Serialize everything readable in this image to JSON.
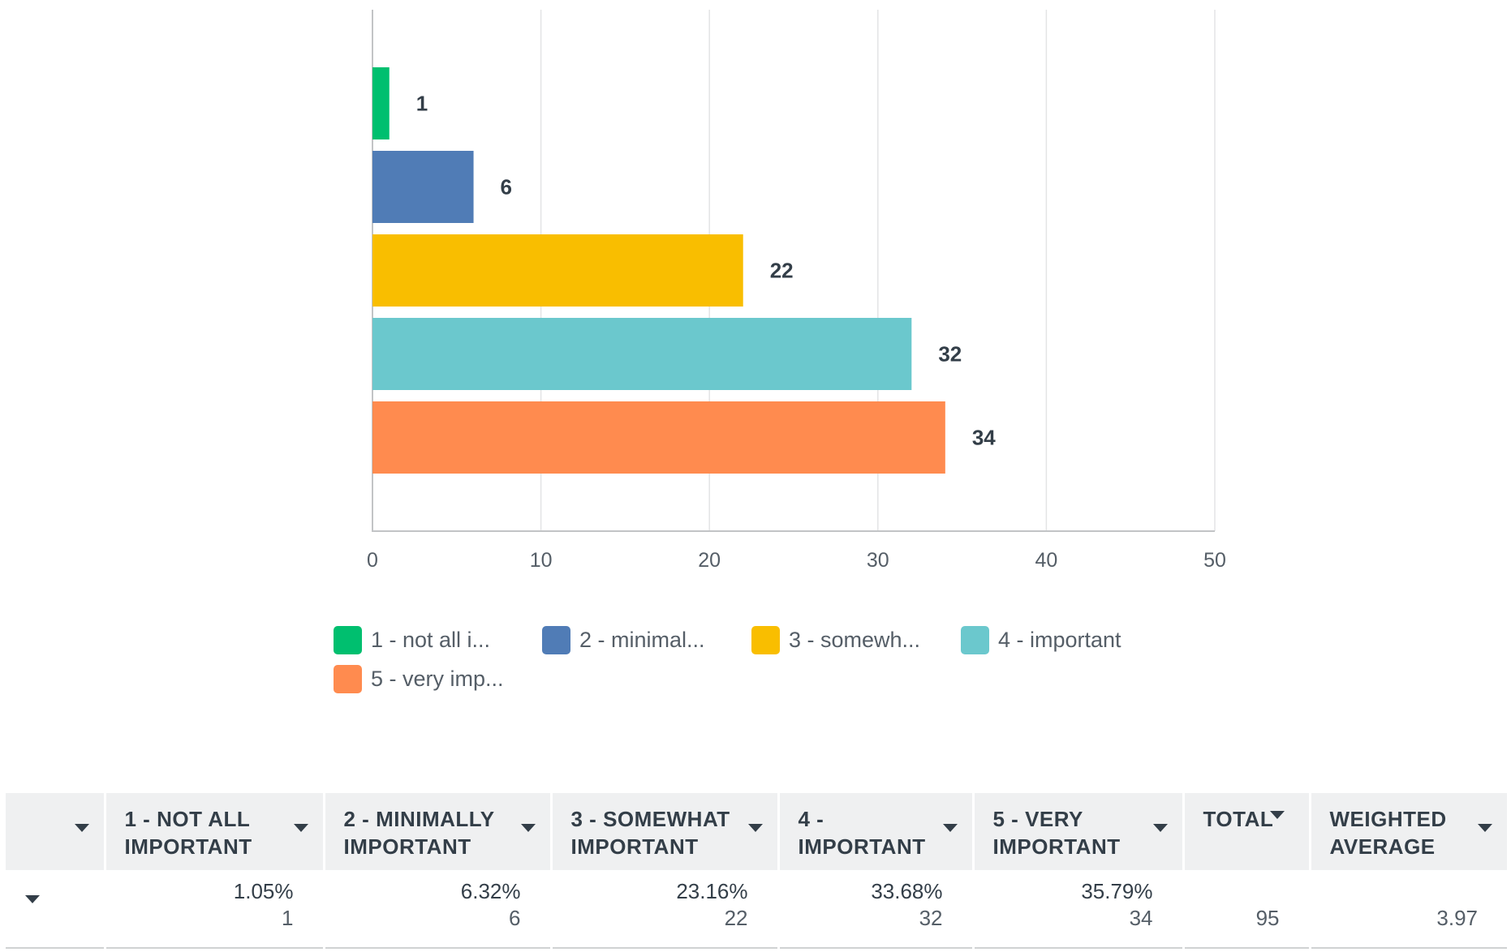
{
  "chart_data": {
    "type": "bar",
    "orientation": "horizontal",
    "title": "",
    "xlabel": "",
    "ylabel": "",
    "xlim": [
      0,
      50
    ],
    "xticks": [
      0,
      10,
      20,
      30,
      40,
      50
    ],
    "grid": true,
    "legend_position": "bottom",
    "series": [
      {
        "name": "1 - not all important",
        "legend_label": "1 - not all i...",
        "value": 1,
        "color": "#00bf6f"
      },
      {
        "name": "2 - minimally important",
        "legend_label": "2 - minimal...",
        "value": 6,
        "color": "#507cb6"
      },
      {
        "name": "3 - somewhat important",
        "legend_label": "3 - somewh...",
        "value": 22,
        "color": "#f9be00"
      },
      {
        "name": "4 - important",
        "legend_label": "4 - important",
        "value": 32,
        "color": "#6bc8cd"
      },
      {
        "name": "5 - very important",
        "legend_label": "5 - very imp...",
        "value": 34,
        "color": "#ff8b4f"
      }
    ]
  },
  "table": {
    "headers": [
      {
        "label": ""
      },
      {
        "label": "1 - NOT ALL IMPORTANT"
      },
      {
        "label": "2 - MINIMALLY IMPORTANT"
      },
      {
        "label": "3 - SOMEWHAT IMPORTANT"
      },
      {
        "label": "4 - IMPORTANT"
      },
      {
        "label": "5 - VERY IMPORTANT"
      },
      {
        "label": "TOTAL"
      },
      {
        "label": "WEIGHTED AVERAGE"
      }
    ],
    "row": {
      "label": "",
      "cells": [
        {
          "pct": "1.05%",
          "count": "1"
        },
        {
          "pct": "6.32%",
          "count": "6"
        },
        {
          "pct": "23.16%",
          "count": "22"
        },
        {
          "pct": "33.68%",
          "count": "32"
        },
        {
          "pct": "35.79%",
          "count": "34"
        }
      ],
      "total": "95",
      "weighted_average": "3.97"
    }
  }
}
